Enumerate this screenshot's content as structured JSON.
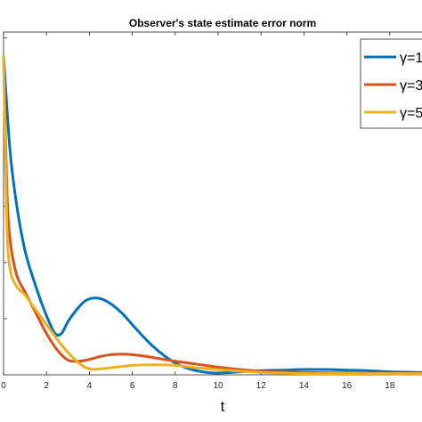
{
  "chart_data": {
    "type": "line",
    "title": "Observer's state estimate error norm",
    "xlabel": "t",
    "ylabel": "",
    "xlim": [
      0,
      19.5
    ],
    "ylim": [
      0,
      5.8
    ],
    "xticks": [
      "0",
      "2",
      "4",
      "6",
      "8",
      "10",
      "12",
      "14",
      "16",
      "18"
    ],
    "grid": false,
    "legend_position": "top-right",
    "series": [
      {
        "name": "γ=1",
        "color": "#0072BD",
        "x": [
          0,
          0.3,
          0.6,
          1.0,
          1.5,
          2.0,
          2.4,
          2.7,
          3.0,
          3.4,
          3.8,
          4.2,
          4.6,
          5.0,
          5.5,
          6.0,
          6.5,
          7.0,
          7.5,
          8.0,
          8.5,
          9.0,
          9.5,
          10,
          11,
          12,
          13,
          14,
          15,
          16,
          17,
          18,
          19.5
        ],
        "y": [
          5.4,
          3.8,
          2.9,
          2.1,
          1.5,
          1.0,
          0.7,
          0.7,
          0.9,
          1.1,
          1.25,
          1.3,
          1.28,
          1.2,
          1.05,
          0.85,
          0.65,
          0.47,
          0.32,
          0.2,
          0.12,
          0.07,
          0.04,
          0.03,
          0.05,
          0.07,
          0.08,
          0.09,
          0.09,
          0.08,
          0.07,
          0.05,
          0.04
        ]
      },
      {
        "name": "γ=3",
        "color": "#D95319",
        "x": [
          0,
          0.15,
          0.3,
          0.6,
          1.0,
          1.5,
          2.0,
          2.5,
          3.0,
          3.5,
          4.0,
          4.5,
          5.0,
          5.5,
          6.0,
          6.5,
          7.0,
          7.5,
          8.0,
          9.0,
          10,
          11,
          12,
          13,
          14,
          16,
          18,
          19.5
        ],
        "y": [
          5.4,
          3.2,
          2.3,
          1.7,
          1.4,
          1.05,
          0.7,
          0.42,
          0.25,
          0.23,
          0.26,
          0.31,
          0.34,
          0.35,
          0.34,
          0.32,
          0.29,
          0.26,
          0.23,
          0.18,
          0.13,
          0.09,
          0.06,
          0.05,
          0.04,
          0.03,
          0.02,
          0.02
        ]
      },
      {
        "name": "γ=5",
        "color": "#EDB120",
        "x": [
          0,
          0.15,
          0.3,
          0.6,
          1.0,
          1.5,
          2.0,
          2.5,
          3.0,
          3.5,
          4.0,
          4.5,
          5.0,
          5.5,
          6.0,
          7.0,
          8.0,
          9.0,
          10,
          11,
          12,
          13,
          14,
          16,
          18,
          19.5
        ],
        "y": [
          5.4,
          2.6,
          1.8,
          1.5,
          1.35,
          1.1,
          0.85,
          0.6,
          0.38,
          0.2,
          0.1,
          0.1,
          0.12,
          0.14,
          0.16,
          0.17,
          0.16,
          0.12,
          0.09,
          0.06,
          0.04,
          0.03,
          0.02,
          0.02,
          0.02,
          0.02
        ]
      }
    ]
  }
}
